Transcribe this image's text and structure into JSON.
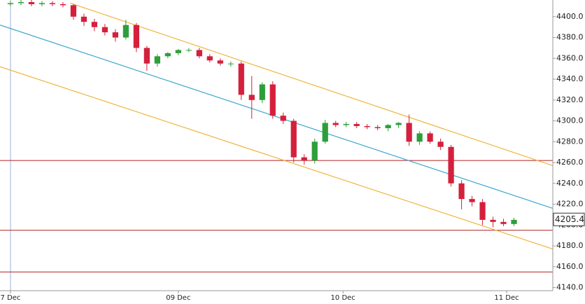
{
  "chart_data": {
    "type": "candlestick",
    "x": [
      0,
      1,
      2,
      3,
      4,
      5,
      6,
      7,
      8,
      9,
      10,
      11,
      12,
      13,
      14,
      15,
      16,
      17,
      18,
      19,
      20,
      21,
      22,
      23,
      24,
      25,
      26,
      27,
      28,
      29,
      30,
      31,
      32,
      33,
      34,
      35,
      36,
      37,
      38,
      39,
      40,
      41,
      42,
      43,
      44,
      45,
      46,
      47,
      48
    ],
    "open": [
      4412,
      4413,
      4414,
      4412,
      4413,
      4412,
      4411,
      4400,
      4395,
      4390,
      4385,
      4380,
      4392,
      4370,
      4355,
      4362,
      4365,
      4368,
      4368,
      4362,
      4358,
      4355,
      4355,
      4325,
      4320,
      4335,
      4305,
      4300,
      4265,
      4262,
      4280,
      4298,
      4296,
      4297,
      4295,
      4294,
      4293,
      4296,
      4298,
      4280,
      4288,
      4280,
      4275,
      4240,
      4225,
      4222,
      4205,
      4203,
      4201
    ],
    "high": [
      4415,
      4416,
      4416,
      4415,
      4415,
      4414,
      4412,
      4403,
      4398,
      4393,
      4388,
      4397,
      4394,
      4372,
      4364,
      4366,
      4369,
      4370,
      4370,
      4364,
      4360,
      4357,
      4357,
      4343,
      4337,
      4338,
      4308,
      4302,
      4268,
      4283,
      4301,
      4300,
      4299,
      4299,
      4297,
      4296,
      4297,
      4299,
      4306,
      4290,
      4290,
      4283,
      4277,
      4243,
      4228,
      4225,
      4208,
      4206,
      4207
    ],
    "low": [
      4410,
      4411,
      4410,
      4410,
      4410,
      4409,
      4397,
      4391,
      4386,
      4382,
      4376,
      4378,
      4366,
      4348,
      4352,
      4360,
      4363,
      4366,
      4360,
      4356,
      4353,
      4352,
      4320,
      4302,
      4317,
      4302,
      4297,
      4260,
      4258,
      4259,
      4278,
      4294,
      4294,
      4293,
      4292,
      4291,
      4290,
      4293,
      4276,
      4277,
      4278,
      4272,
      4237,
      4215,
      4218,
      4200,
      4198,
      4199,
      4199
    ],
    "close": [
      4413,
      4414,
      4412,
      4413,
      4412,
      4411,
      4400,
      4395,
      4390,
      4385,
      4380,
      4392,
      4370,
      4355,
      4362,
      4365,
      4368,
      4368,
      4362,
      4358,
      4355,
      4355,
      4325,
      4320,
      4335,
      4305,
      4300,
      4265,
      4262,
      4280,
      4298,
      4296,
      4297,
      4295,
      4294,
      4293,
      4296,
      4298,
      4280,
      4288,
      4280,
      4275,
      4240,
      4225,
      4222,
      4205,
      4203,
      4201,
      4205
    ],
    "up_color": "#2e9e3a",
    "down_color": "#d4203c",
    "xlim": [
      -1,
      51.7
    ],
    "xticks": [
      {
        "value": 0,
        "label": "7 Dec"
      },
      {
        "value": 16,
        "label": "09 Dec"
      },
      {
        "value": 31.7,
        "label": "10 Dec"
      },
      {
        "value": 47.3,
        "label": "11 Dec"
      }
    ],
    "ylim": [
      4137,
      4416
    ],
    "yticks": [
      {
        "value": 4140,
        "label": "4140.0"
      },
      {
        "value": 4160,
        "label": "4160.0"
      },
      {
        "value": 4180,
        "label": "4180.0"
      },
      {
        "value": 4200,
        "label": "4200.0"
      },
      {
        "value": 4220,
        "label": "4220.0"
      },
      {
        "value": 4240,
        "label": "4240.0"
      },
      {
        "value": 4260,
        "label": "4260.0"
      },
      {
        "value": 4280,
        "label": "4280.0"
      },
      {
        "value": 4300,
        "label": "4300.0"
      },
      {
        "value": 4320,
        "label": "4320.0"
      },
      {
        "value": 4340,
        "label": "4340.0"
      },
      {
        "value": 4360,
        "label": "4360.0"
      },
      {
        "value": 4380,
        "label": "4380.0"
      },
      {
        "value": 4400,
        "label": "4400.0"
      }
    ],
    "trend_lines": [
      {
        "color": "#f0b43c",
        "x": [
          5.7,
          51.7
        ],
        "y": [
          4413,
          4257
        ]
      },
      {
        "color": "#3aa6d0",
        "x": [
          -1,
          51.7
        ],
        "y": [
          4392,
          4216
        ]
      },
      {
        "color": "#f0b43c",
        "x": [
          -1,
          51.7
        ],
        "y": [
          4352,
          4177
        ]
      }
    ],
    "hlines": [
      {
        "value": 4262,
        "color": "#b02020"
      },
      {
        "value": 4195,
        "color": "#b02020"
      },
      {
        "value": 4155,
        "color": "#b02020"
      }
    ],
    "last_price": {
      "value": 4205.4,
      "label": "4205.4"
    }
  }
}
